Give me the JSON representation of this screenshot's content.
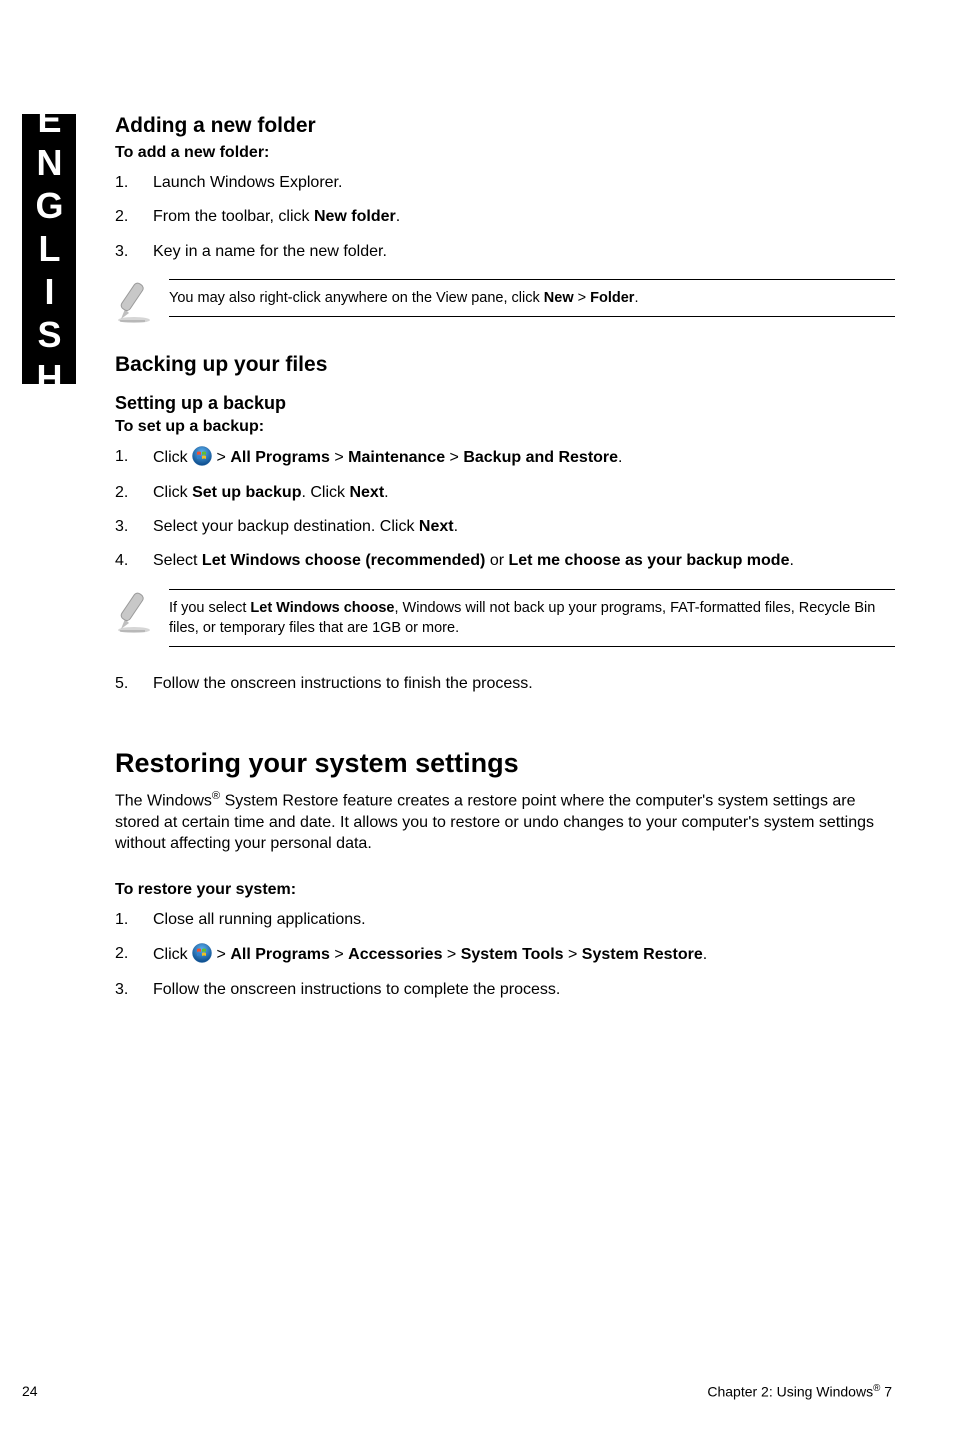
{
  "side_tab": {
    "label": "ENGLISH"
  },
  "section_add_folder": {
    "heading": "Adding a new folder",
    "subheading": "To add a new folder:",
    "steps": [
      "Launch Windows Explorer.",
      "From the toolbar, click <b>New folder</b>.",
      "Key in a name for the new folder."
    ],
    "note": "You may also right-click anywhere on the View pane, click <b>New</b> > <b>Folder</b>."
  },
  "section_backup": {
    "heading": "Backing up your files",
    "subheading": "Setting up a backup",
    "subsub": "To set up a backup:",
    "steps": [
      "Click {WIN} > <b>All Programs</b> > <b>Maintenance</b> > <b>Backup and Restore</b>.",
      "Click <b>Set up backup</b>. Click <b>Next</b>.",
      "Select your backup destination. Click <b>Next</b>.",
      "Select <b>Let Windows choose (recommended)</b> or <b>Let me choose as your backup mode</b>."
    ],
    "note": "If you select <b>Let Windows choose</b>, Windows will not back up your programs, FAT-formatted files, Recycle Bin files, or temporary files that are 1GB or more.",
    "step_after": "Follow the onscreen instructions to finish the process."
  },
  "section_restore": {
    "heading": "Restoring your system settings",
    "paragraph": "The Windows<sup>®</sup> System Restore feature creates a restore point where the computer's system settings are stored at certain time and date. It allows you to restore or undo changes to your computer's system settings without affecting your personal data.",
    "subheading": "To restore your system:",
    "steps": [
      "Close all running applications.",
      "Click {WIN} > <b>All Programs</b> > <b>Accessories</b> > <b>System Tools</b> > <b>System Restore</b>.",
      "Follow the onscreen instructions to complete the process."
    ]
  },
  "footer": {
    "page_num": "24",
    "chapter": "Chapter 2: Using Windows<sup>®</sup> 7"
  },
  "icons": {
    "windows_orb": {
      "bg_gradient_top": "#5bb0f0",
      "bg_gradient_bottom": "#0a4a8a",
      "border": "#2a6aa8",
      "flag_colors": [
        "#f05030",
        "#60c030",
        "#3080d0",
        "#f0c020"
      ]
    },
    "pencil_note": {
      "shaft": "#bfbfbf",
      "shadow": "#9a9a9a",
      "line": "#9a9a9a"
    }
  }
}
